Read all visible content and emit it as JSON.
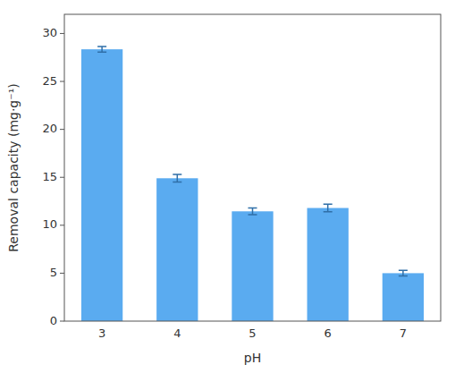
{
  "chart_data": {
    "type": "bar",
    "categories": [
      "3",
      "4",
      "5",
      "6",
      "7"
    ],
    "values": [
      28.35,
      14.9,
      11.45,
      11.8,
      5.0
    ],
    "errors": [
      0.3,
      0.4,
      0.35,
      0.4,
      0.3
    ],
    "color": "#5AABF0",
    "xlabel": "pH",
    "ylabel": "Removal capacity (mg·g⁻¹)",
    "ylim": [
      0,
      32
    ],
    "yticks": [
      0,
      5,
      10,
      15,
      20,
      25,
      30
    ],
    "grid": false
  }
}
